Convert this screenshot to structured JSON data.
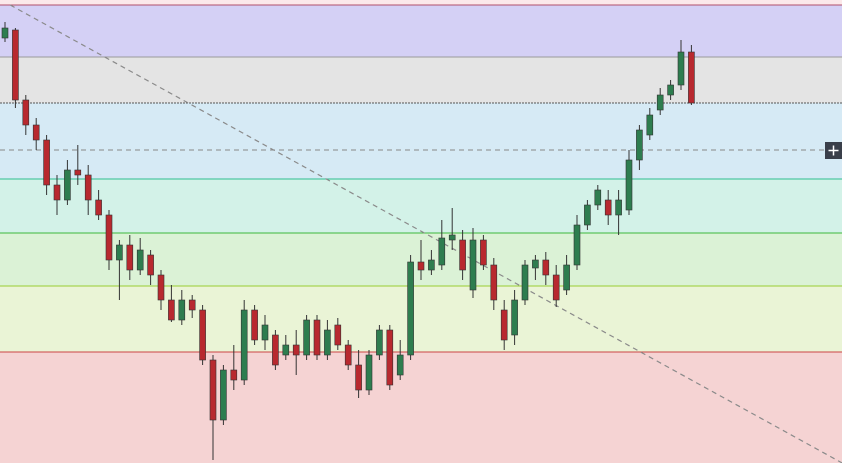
{
  "chart_data": {
    "type": "candlestick",
    "ylim": [
      0,
      463
    ],
    "up_color": "#2e7d4f",
    "down_color": "#b8292f",
    "outline_color": "#333333",
    "levels": [
      {
        "value": 458,
        "color": "#b0506a",
        "fill": "#d4d0f5"
      },
      {
        "value": 406,
        "color": "#9a9a9a",
        "fill": "#e4e4e4"
      },
      {
        "value": 360,
        "color": "#555555",
        "fill": "#d6eaf5"
      },
      {
        "value": 284,
        "color": "#2fbf8f",
        "fill": "#d3f2e8"
      },
      {
        "value": 230,
        "color": "#3cb83c",
        "fill": "#dbf2d6"
      },
      {
        "value": 177,
        "color": "#9acd32",
        "fill": "#eaf4d6"
      },
      {
        "value": 111,
        "color": "#cc4444",
        "fill": "#f5d3d3"
      }
    ],
    "dashed_level": 313,
    "trendline": {
      "x": [
        0.5,
        80.5
      ],
      "y": [
        458,
        0
      ]
    },
    "open": [
      425,
      433,
      363,
      338,
      323,
      278,
      263,
      293,
      288,
      263,
      248,
      203,
      218,
      193,
      208,
      188,
      163,
      143,
      163,
      153,
      103,
      43,
      93,
      83,
      153,
      123,
      128,
      108,
      118,
      108,
      143,
      108,
      138,
      118,
      98,
      73,
      108,
      133,
      88,
      108,
      201,
      193,
      198,
      223,
      223,
      173,
      223,
      198,
      153,
      128,
      163,
      195,
      203,
      188,
      173,
      198,
      238,
      258,
      263,
      248,
      253,
      303,
      328,
      353,
      368,
      378,
      411
    ],
    "high": [
      441,
      435,
      368,
      345,
      328,
      288,
      303,
      318,
      298,
      273,
      253,
      223,
      228,
      225,
      213,
      193,
      178,
      173,
      168,
      158,
      108,
      98,
      118,
      163,
      158,
      148,
      133,
      128,
      133,
      148,
      148,
      143,
      145,
      123,
      113,
      113,
      138,
      138,
      123,
      208,
      223,
      213,
      243,
      255,
      233,
      235,
      228,
      205,
      163,
      173,
      203,
      208,
      211,
      198,
      208,
      248,
      263,
      278,
      273,
      273,
      313,
      338,
      355,
      375,
      383,
      423,
      418
    ],
    "low": [
      421,
      355,
      328,
      313,
      268,
      248,
      258,
      278,
      248,
      243,
      193,
      163,
      183,
      188,
      178,
      153,
      141,
      138,
      145,
      98,
      3,
      38,
      73,
      78,
      118,
      113,
      93,
      103,
      88,
      103,
      103,
      103,
      113,
      93,
      65,
      68,
      103,
      73,
      83,
      103,
      183,
      188,
      193,
      213,
      183,
      165,
      193,
      153,
      113,
      118,
      158,
      183,
      178,
      156,
      168,
      193,
      233,
      253,
      238,
      228,
      248,
      293,
      323,
      348,
      363,
      373,
      358
    ],
    "close": [
      435,
      363,
      338,
      323,
      278,
      263,
      293,
      288,
      263,
      248,
      203,
      218,
      193,
      213,
      188,
      163,
      143,
      163,
      153,
      103,
      43,
      93,
      83,
      153,
      123,
      138,
      98,
      118,
      108,
      143,
      108,
      133,
      118,
      98,
      73,
      108,
      133,
      78,
      108,
      201,
      193,
      203,
      225,
      228,
      193,
      223,
      198,
      163,
      123,
      163,
      198,
      203,
      188,
      163,
      198,
      238,
      258,
      273,
      248,
      263,
      303,
      333,
      348,
      368,
      378,
      411,
      360
    ]
  }
}
